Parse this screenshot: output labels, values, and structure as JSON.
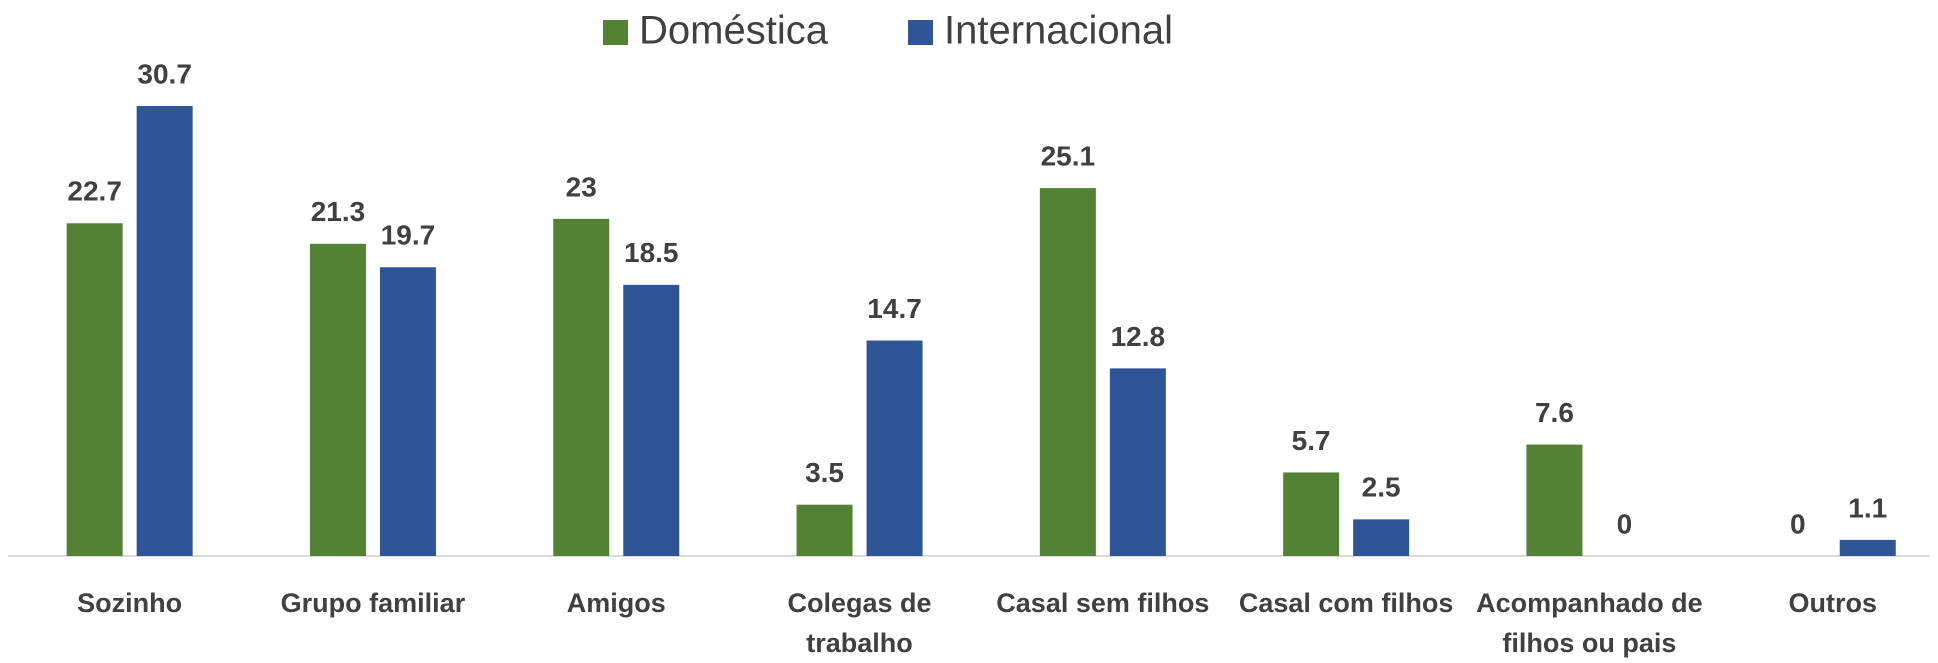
{
  "chart_data": {
    "type": "bar",
    "categories": [
      "Sozinho",
      "Grupo familiar",
      "Amigos",
      "Colegas de trabalho",
      "Casal sem filhos",
      "Casal com filhos",
      "Acompanhado de filhos ou pais",
      "Outros"
    ],
    "series": [
      {
        "name": "Doméstica",
        "color": "#548235",
        "values": [
          22.7,
          21.3,
          23,
          3.5,
          25.1,
          5.7,
          7.6,
          0
        ]
      },
      {
        "name": "Internacional",
        "color": "#2f5597",
        "values": [
          30.7,
          19.7,
          18.5,
          14.7,
          12.8,
          2.5,
          0,
          1.1
        ]
      }
    ],
    "legend": "top"
  }
}
